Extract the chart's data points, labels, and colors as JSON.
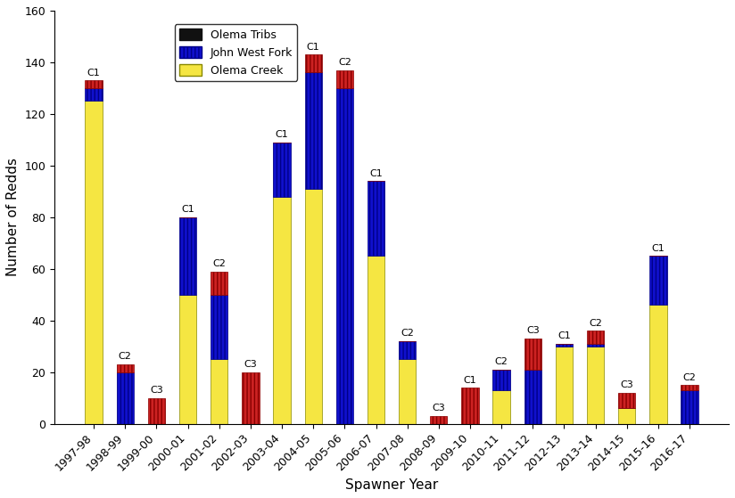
{
  "years": [
    "1997-98",
    "1998-99",
    "1999-00",
    "2000-01",
    "2001-02",
    "2002-03",
    "2003-04",
    "2004-05",
    "2005-06",
    "2006-07",
    "2007-08",
    "2008-09",
    "2009-10",
    "2010-11",
    "2011-12",
    "2012-13",
    "2013-14",
    "2014-15",
    "2015-16",
    "2016-17"
  ],
  "olema_creek": [
    125,
    0,
    0,
    50,
    25,
    0,
    88,
    91,
    0,
    65,
    25,
    0,
    0,
    13,
    0,
    30,
    30,
    6,
    46,
    0
  ],
  "john_west_fork": [
    5,
    20,
    0,
    30,
    25,
    0,
    21,
    45,
    130,
    29,
    7,
    0,
    0,
    8,
    21,
    1,
    1,
    0,
    19,
    13
  ],
  "olema_tribs": [
    3,
    3,
    10,
    0,
    9,
    20,
    0,
    7,
    7,
    0,
    0,
    3,
    14,
    0,
    12,
    0,
    5,
    6,
    0,
    2
  ],
  "bar_labels": [
    "C1",
    "C2",
    "C3",
    "C1",
    "C2",
    "C3",
    "C1",
    "C1",
    "C2",
    "C1",
    "C2",
    "C3",
    "C1",
    "C2",
    "C3",
    "C1",
    "C2",
    "C3",
    "C1",
    "C2"
  ],
  "ylim": [
    0,
    160
  ],
  "yticks": [
    0,
    20,
    40,
    60,
    80,
    100,
    120,
    140,
    160
  ],
  "xlabel": "Spawner Year",
  "ylabel": "Number of Redds",
  "color_olema_creek_face": "#F5E642",
  "color_john_west_fork_face": "#1010CC",
  "color_olema_tribs_face": "#CC2222",
  "bar_width": 0.55,
  "figsize": [
    8.24,
    5.59
  ],
  "dpi": 100
}
